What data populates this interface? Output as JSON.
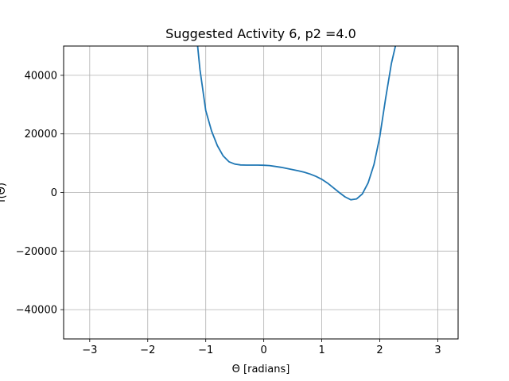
{
  "chart_data": {
    "type": "line",
    "title": "Suggested Activity 6, p2 =4.0",
    "xlabel": "Θ [radians]",
    "ylabel": "f(Θ)",
    "xlim": [
      -3.45,
      3.35
    ],
    "ylim": [
      -50000,
      50000
    ],
    "x_ticks": [
      -3,
      -2,
      -1,
      0,
      1,
      2,
      3
    ],
    "x_tick_labels": [
      "−3",
      "−2",
      "−1",
      "0",
      "1",
      "2",
      "3"
    ],
    "y_ticks": [
      -40000,
      -20000,
      0,
      20000,
      40000
    ],
    "y_tick_labels": [
      "−40000",
      "−20000",
      "0",
      "20000",
      "40000"
    ],
    "grid": true,
    "series": [
      {
        "color": "#1f77b4",
        "x": [
          -1.14,
          -1.1,
          -1.0,
          -0.9,
          -0.8,
          -0.7,
          -0.6,
          -0.5,
          -0.4,
          -0.3,
          -0.2,
          -0.1,
          0.0,
          0.1,
          0.2,
          0.3,
          0.4,
          0.5,
          0.6,
          0.7,
          0.8,
          0.9,
          1.0,
          1.1,
          1.2,
          1.3,
          1.4,
          1.5,
          1.6,
          1.7,
          1.8,
          1.9,
          2.0,
          2.1,
          2.2,
          2.27
        ],
        "y": [
          50000,
          42000,
          28000,
          21000,
          16000,
          12500,
          10500,
          9700,
          9400,
          9350,
          9350,
          9350,
          9300,
          9200,
          8900,
          8600,
          8200,
          7800,
          7400,
          6900,
          6300,
          5500,
          4500,
          3200,
          1600,
          0,
          -1500,
          -2500,
          -2200,
          -500,
          3300,
          9500,
          19000,
          32000,
          44000,
          50000
        ]
      }
    ]
  }
}
